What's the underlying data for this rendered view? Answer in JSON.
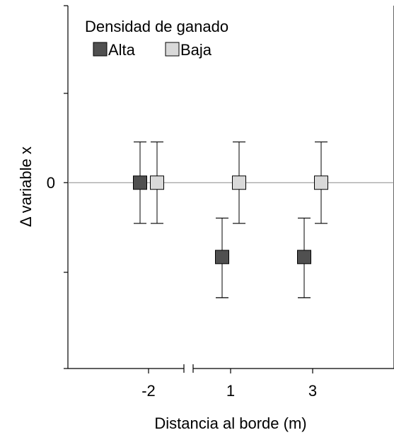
{
  "chart_data": {
    "type": "scatter",
    "title": "",
    "xlabel": "Distancia al borde (m)",
    "ylabel": "Δ variable x",
    "categories": [
      "-2",
      "1",
      "3"
    ],
    "y_tick_labels": [
      {
        "value": 0,
        "label": "0"
      }
    ],
    "ylim": [
      -1.05,
      1.0
    ],
    "grid": false,
    "reference_line_y": 0,
    "legend": {
      "title": "Densidad de ganado",
      "placement": "top-left"
    },
    "series": [
      {
        "name": "Alta",
        "color": "#505050",
        "marker": "square",
        "values": [
          0,
          -0.42,
          -0.42
        ],
        "err_low": [
          -0.23,
          -0.65,
          -0.65
        ],
        "err_high": [
          0.23,
          -0.2,
          -0.2
        ]
      },
      {
        "name": "Baja",
        "color": "#d9d9d9",
        "marker": "square",
        "values": [
          0,
          0,
          0
        ],
        "err_low": [
          -0.23,
          -0.23,
          -0.23
        ],
        "err_high": [
          0.23,
          0.23,
          0.23
        ]
      }
    ]
  }
}
